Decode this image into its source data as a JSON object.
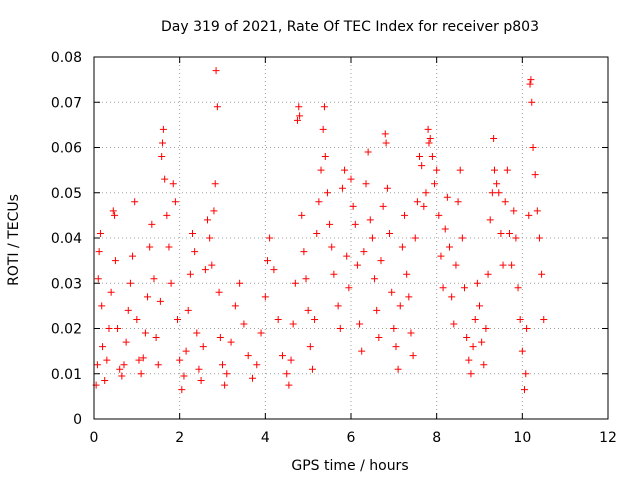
{
  "chart_data": {
    "type": "scatter",
    "title": "Day 319 of 2021, Rate Of TEC Index for receiver p803",
    "xlabel": "GPS time / hours",
    "ylabel": "ROTI / TECUs",
    "xlim": [
      0,
      12
    ],
    "ylim": [
      0,
      0.08
    ],
    "xticks": [
      "0",
      "2",
      "4",
      "6",
      "8",
      "10",
      "12"
    ],
    "yticks": [
      "0",
      "0.01",
      "0.02",
      "0.03",
      "0.04",
      "0.05",
      "0.06",
      "0.07",
      "0.08"
    ],
    "grid": true,
    "marker": "+",
    "color": "#ff0000",
    "series": [
      {
        "name": "ROTI",
        "points": [
          [
            0.05,
            0.0075
          ],
          [
            0.08,
            0.012
          ],
          [
            0.1,
            0.031
          ],
          [
            0.12,
            0.037
          ],
          [
            0.15,
            0.041
          ],
          [
            0.18,
            0.025
          ],
          [
            0.2,
            0.016
          ],
          [
            0.25,
            0.0085
          ],
          [
            0.3,
            0.013
          ],
          [
            0.35,
            0.02
          ],
          [
            0.4,
            0.028
          ],
          [
            0.45,
            0.046
          ],
          [
            0.48,
            0.045
          ],
          [
            0.5,
            0.035
          ],
          [
            0.55,
            0.02
          ],
          [
            0.6,
            0.011
          ],
          [
            0.65,
            0.0095
          ],
          [
            0.7,
            0.012
          ],
          [
            0.75,
            0.017
          ],
          [
            0.8,
            0.024
          ],
          [
            0.85,
            0.03
          ],
          [
            0.9,
            0.036
          ],
          [
            0.95,
            0.048
          ],
          [
            1.0,
            0.022
          ],
          [
            1.05,
            0.013
          ],
          [
            1.1,
            0.01
          ],
          [
            1.15,
            0.0135
          ],
          [
            1.2,
            0.019
          ],
          [
            1.25,
            0.027
          ],
          [
            1.3,
            0.038
          ],
          [
            1.35,
            0.043
          ],
          [
            1.4,
            0.031
          ],
          [
            1.45,
            0.018
          ],
          [
            1.5,
            0.012
          ],
          [
            1.55,
            0.026
          ],
          [
            1.58,
            0.058
          ],
          [
            1.6,
            0.061
          ],
          [
            1.62,
            0.064
          ],
          [
            1.65,
            0.053
          ],
          [
            1.7,
            0.045
          ],
          [
            1.75,
            0.038
          ],
          [
            1.8,
            0.03
          ],
          [
            1.85,
            0.052
          ],
          [
            1.9,
            0.048
          ],
          [
            1.95,
            0.022
          ],
          [
            2.0,
            0.013
          ],
          [
            2.05,
            0.0065
          ],
          [
            2.1,
            0.0095
          ],
          [
            2.15,
            0.015
          ],
          [
            2.2,
            0.024
          ],
          [
            2.25,
            0.032
          ],
          [
            2.3,
            0.041
          ],
          [
            2.35,
            0.037
          ],
          [
            2.4,
            0.019
          ],
          [
            2.45,
            0.011
          ],
          [
            2.5,
            0.0085
          ],
          [
            2.55,
            0.016
          ],
          [
            2.6,
            0.033
          ],
          [
            2.65,
            0.044
          ],
          [
            2.7,
            0.04
          ],
          [
            2.75,
            0.034
          ],
          [
            2.8,
            0.046
          ],
          [
            2.83,
            0.052
          ],
          [
            2.85,
            0.077
          ],
          [
            2.88,
            0.069
          ],
          [
            2.92,
            0.028
          ],
          [
            2.95,
            0.018
          ],
          [
            3.0,
            0.012
          ],
          [
            3.05,
            0.0075
          ],
          [
            3.1,
            0.01
          ],
          [
            3.2,
            0.017
          ],
          [
            3.3,
            0.025
          ],
          [
            3.4,
            0.03
          ],
          [
            3.5,
            0.021
          ],
          [
            3.6,
            0.014
          ],
          [
            3.7,
            0.009
          ],
          [
            3.8,
            0.012
          ],
          [
            3.9,
            0.019
          ],
          [
            4.0,
            0.027
          ],
          [
            4.05,
            0.035
          ],
          [
            4.1,
            0.04
          ],
          [
            4.2,
            0.033
          ],
          [
            4.3,
            0.022
          ],
          [
            4.4,
            0.014
          ],
          [
            4.5,
            0.01
          ],
          [
            4.55,
            0.0075
          ],
          [
            4.6,
            0.013
          ],
          [
            4.65,
            0.021
          ],
          [
            4.7,
            0.03
          ],
          [
            4.75,
            0.066
          ],
          [
            4.78,
            0.069
          ],
          [
            4.8,
            0.067
          ],
          [
            4.85,
            0.045
          ],
          [
            4.9,
            0.037
          ],
          [
            4.95,
            0.031
          ],
          [
            5.0,
            0.024
          ],
          [
            5.05,
            0.016
          ],
          [
            5.1,
            0.011
          ],
          [
            5.15,
            0.022
          ],
          [
            5.2,
            0.041
          ],
          [
            5.25,
            0.048
          ],
          [
            5.3,
            0.055
          ],
          [
            5.35,
            0.064
          ],
          [
            5.38,
            0.069
          ],
          [
            5.4,
            0.058
          ],
          [
            5.45,
            0.05
          ],
          [
            5.5,
            0.043
          ],
          [
            5.55,
            0.038
          ],
          [
            5.6,
            0.032
          ],
          [
            5.7,
            0.025
          ],
          [
            5.75,
            0.02
          ],
          [
            5.8,
            0.051
          ],
          [
            5.85,
            0.055
          ],
          [
            5.9,
            0.036
          ],
          [
            5.95,
            0.029
          ],
          [
            6.0,
            0.053
          ],
          [
            6.05,
            0.047
          ],
          [
            6.1,
            0.043
          ],
          [
            6.15,
            0.034
          ],
          [
            6.2,
            0.021
          ],
          [
            6.25,
            0.015
          ],
          [
            6.3,
            0.037
          ],
          [
            6.35,
            0.052
          ],
          [
            6.4,
            0.059
          ],
          [
            6.45,
            0.044
          ],
          [
            6.5,
            0.04
          ],
          [
            6.55,
            0.031
          ],
          [
            6.6,
            0.024
          ],
          [
            6.65,
            0.018
          ],
          [
            6.7,
            0.035
          ],
          [
            6.75,
            0.047
          ],
          [
            6.8,
            0.063
          ],
          [
            6.82,
            0.061
          ],
          [
            6.85,
            0.051
          ],
          [
            6.9,
            0.041
          ],
          [
            6.95,
            0.028
          ],
          [
            7.0,
            0.02
          ],
          [
            7.05,
            0.016
          ],
          [
            7.1,
            0.011
          ],
          [
            7.15,
            0.025
          ],
          [
            7.2,
            0.038
          ],
          [
            7.25,
            0.045
          ],
          [
            7.3,
            0.032
          ],
          [
            7.35,
            0.027
          ],
          [
            7.4,
            0.019
          ],
          [
            7.45,
            0.014
          ],
          [
            7.5,
            0.04
          ],
          [
            7.55,
            0.048
          ],
          [
            7.6,
            0.058
          ],
          [
            7.65,
            0.056
          ],
          [
            7.7,
            0.047
          ],
          [
            7.75,
            0.05
          ],
          [
            7.8,
            0.064
          ],
          [
            7.82,
            0.061
          ],
          [
            7.85,
            0.062
          ],
          [
            7.9,
            0.058
          ],
          [
            7.95,
            0.052
          ],
          [
            8.0,
            0.055
          ],
          [
            8.05,
            0.045
          ],
          [
            8.1,
            0.036
          ],
          [
            8.15,
            0.029
          ],
          [
            8.2,
            0.042
          ],
          [
            8.25,
            0.049
          ],
          [
            8.3,
            0.038
          ],
          [
            8.35,
            0.027
          ],
          [
            8.4,
            0.021
          ],
          [
            8.45,
            0.034
          ],
          [
            8.5,
            0.048
          ],
          [
            8.55,
            0.055
          ],
          [
            8.6,
            0.04
          ],
          [
            8.65,
            0.029
          ],
          [
            8.7,
            0.018
          ],
          [
            8.75,
            0.013
          ],
          [
            8.8,
            0.01
          ],
          [
            8.85,
            0.016
          ],
          [
            8.9,
            0.022
          ],
          [
            8.95,
            0.03
          ],
          [
            9.0,
            0.025
          ],
          [
            9.05,
            0.017
          ],
          [
            9.1,
            0.012
          ],
          [
            9.15,
            0.02
          ],
          [
            9.2,
            0.032
          ],
          [
            9.25,
            0.044
          ],
          [
            9.3,
            0.05
          ],
          [
            9.33,
            0.062
          ],
          [
            9.35,
            0.055
          ],
          [
            9.4,
            0.052
          ],
          [
            9.45,
            0.05
          ],
          [
            9.5,
            0.041
          ],
          [
            9.55,
            0.034
          ],
          [
            9.6,
            0.048
          ],
          [
            9.65,
            0.055
          ],
          [
            9.7,
            0.041
          ],
          [
            9.75,
            0.034
          ],
          [
            9.8,
            0.046
          ],
          [
            9.85,
            0.04
          ],
          [
            9.9,
            0.029
          ],
          [
            9.95,
            0.022
          ],
          [
            10.0,
            0.015
          ],
          [
            10.05,
            0.0065
          ],
          [
            10.08,
            0.01
          ],
          [
            10.1,
            0.02
          ],
          [
            10.15,
            0.045
          ],
          [
            10.18,
            0.074
          ],
          [
            10.2,
            0.075
          ],
          [
            10.22,
            0.07
          ],
          [
            10.25,
            0.06
          ],
          [
            10.3,
            0.054
          ],
          [
            10.35,
            0.046
          ],
          [
            10.4,
            0.04
          ],
          [
            10.45,
            0.032
          ],
          [
            10.5,
            0.022
          ]
        ]
      }
    ]
  }
}
